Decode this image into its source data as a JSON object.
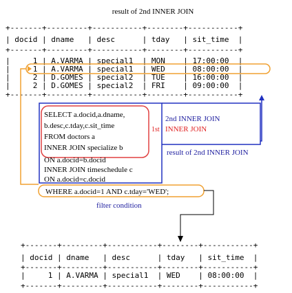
{
  "diagram": {
    "title": "result of 2nd INNER JOIN",
    "top_table": {
      "border": "+-------+---------+-----------+--------+-----------+",
      "header": "| docid | dname   | desc      | tday   | sit_time  |",
      "rows": [
        "|     1 | A.VARMA | special1  | MON    | 17:00:00  |",
        "|     1 | A.VARMA | special1  | WED    | 08:00:00  |",
        "|     2 | D.GOMES | special2  | TUE    | 16:00:00  |",
        "|     2 | D.GOMES | special2  | FRI    | 09:00:00  |"
      ]
    },
    "bottom_table": {
      "border": "+-------+---------+-----------+--------+-----------+",
      "header": "| docid | dname   | desc      | tday   | sit_time  |",
      "rows": [
        "|     1 | A.VARMA | special1  | WED    | 08:00:00  |"
      ]
    },
    "sql": {
      "inner_block": [
        "SELECT a.docid,a.dname,",
        "b.desc,c.tday,c.sit_time",
        "FROM doctors a",
        "INNER JOIN specialize b"
      ],
      "outer_block": [
        "ON a.docid=b.docid",
        "INNER JOIN timeschedule c",
        "ON a.docid=c.docid"
      ],
      "where_clause": "WHERE a.docid=1 AND c.tday='WED';"
    },
    "labels": {
      "first": "1st",
      "second_join": "2nd INNER JOIN",
      "inner_join": "INNER JOIN",
      "result_second": "result of 2nd INNER JOIN",
      "filter": "filter condition"
    },
    "colors": {
      "orange": "#f0a030",
      "red": "#e04040",
      "blue": "#2030c0",
      "text": "#000000",
      "red_text": "#e02020",
      "blue_text": "#2020a0"
    }
  }
}
